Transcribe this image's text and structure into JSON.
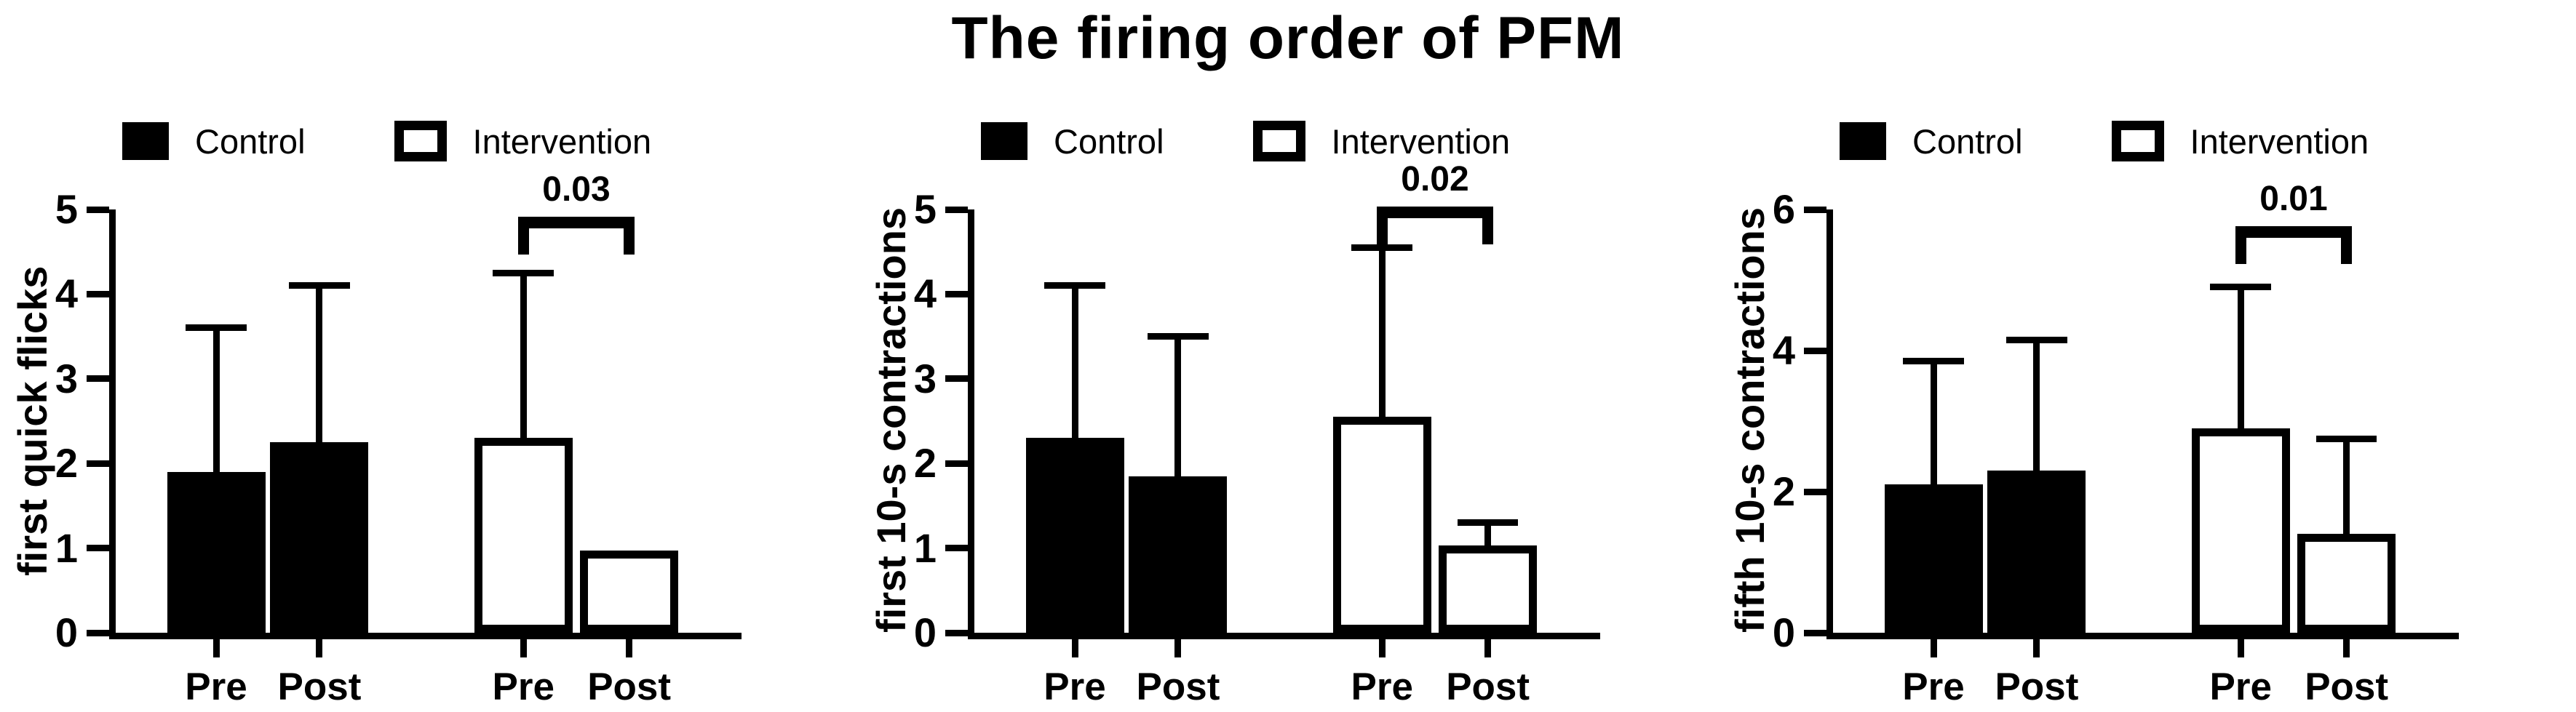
{
  "title": "The firing order of PFM",
  "colors": {
    "foreground": "#000000",
    "background": "#ffffff",
    "bar_control": "#000000",
    "bar_intervention": "#ffffff"
  },
  "legend": {
    "items": [
      {
        "label": "Control",
        "fill": "#000000",
        "style": "filled"
      },
      {
        "label": "Intervention",
        "fill": "#ffffff",
        "style": "open"
      }
    ]
  },
  "chart_data": [
    {
      "type": "bar",
      "ylabel": "first quick flicks",
      "ylim": [
        0,
        5
      ],
      "yticks": [
        0,
        1,
        2,
        3,
        4,
        5
      ],
      "categories": [
        "Pre",
        "Post"
      ],
      "x_tick_labels": [
        "Pre",
        "Post",
        "Pre",
        "Post"
      ],
      "series": [
        {
          "name": "Control",
          "values": [
            1.9,
            2.25
          ],
          "error_top": [
            3.6,
            4.1
          ],
          "fill": "#000000"
        },
        {
          "name": "Intervention",
          "values": [
            2.3,
            0.97
          ],
          "error_top": [
            4.25,
            null
          ],
          "fill": "#ffffff"
        }
      ],
      "significance": {
        "label": "0.03",
        "between": [
          "Intervention-Pre",
          "Intervention-Post"
        ],
        "bracket_y": 4.78
      }
    },
    {
      "type": "bar",
      "ylabel": "first 10-s contractions",
      "ylim": [
        0,
        5
      ],
      "yticks": [
        0,
        1,
        2,
        3,
        4,
        5
      ],
      "categories": [
        "Pre",
        "Post"
      ],
      "x_tick_labels": [
        "Pre",
        "Post",
        "Pre",
        "Post"
      ],
      "series": [
        {
          "name": "Control",
          "values": [
            2.3,
            1.85
          ],
          "error_top": [
            4.1,
            3.5
          ],
          "fill": "#000000"
        },
        {
          "name": "Intervention",
          "values": [
            2.55,
            1.03
          ],
          "error_top": [
            4.55,
            1.3
          ],
          "fill": "#ffffff"
        }
      ],
      "significance": {
        "label": "0.02",
        "between": [
          "Intervention-Pre",
          "Intervention-Post"
        ],
        "bracket_y": 4.9
      }
    },
    {
      "type": "bar",
      "ylabel": "fifth 10-s contractions",
      "ylim": [
        0,
        6
      ],
      "yticks": [
        0,
        2,
        4,
        6
      ],
      "categories": [
        "Pre",
        "Post"
      ],
      "x_tick_labels": [
        "Pre",
        "Post",
        "Pre",
        "Post"
      ],
      "series": [
        {
          "name": "Control",
          "values": [
            2.1,
            2.3
          ],
          "error_top": [
            3.85,
            4.15
          ],
          "fill": "#000000"
        },
        {
          "name": "Intervention",
          "values": [
            2.9,
            1.4
          ],
          "error_top": [
            4.9,
            2.75
          ],
          "fill": "#ffffff"
        }
      ],
      "significance": {
        "label": "0.01",
        "between": [
          "Intervention-Pre",
          "Intervention-Post"
        ],
        "bracket_y": 5.6
      }
    }
  ]
}
